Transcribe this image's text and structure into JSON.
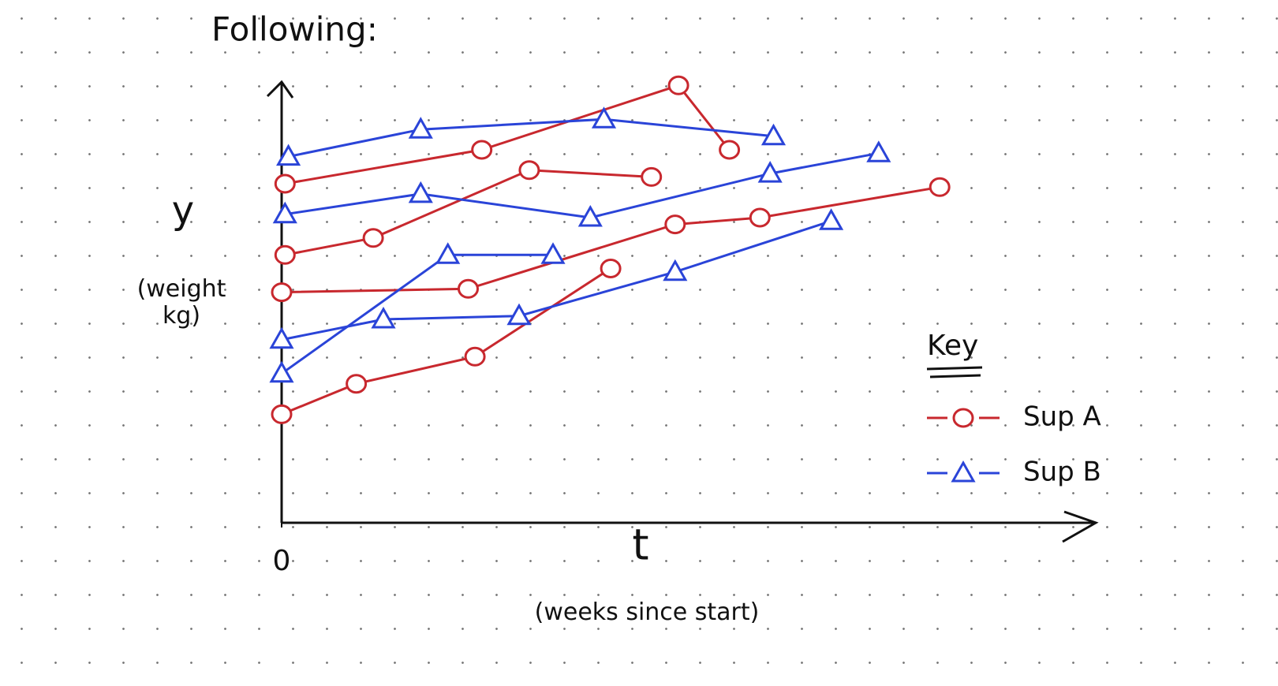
{
  "chart_data": {
    "type": "line",
    "title": "Following:",
    "xlabel": "t",
    "xlabel_note": "(weeks since start)",
    "ylabel": "y",
    "ylabel_note": "(weight kg)",
    "legend_title": "Key",
    "legend": "right",
    "xlim": [
      0,
      24
    ],
    "ylim": [
      0,
      13
    ],
    "xticks": [
      0
    ],
    "series": [
      {
        "name": "Sup A",
        "color": "#c8282e",
        "marker": "circle",
        "x": [
          0,
          2.2,
          5.7,
          9.7
        ],
        "values": [
          3.2,
          4.1,
          4.9,
          7.5
        ]
      },
      {
        "name": "Sup A",
        "color": "#c8282e",
        "marker": "circle",
        "x": [
          0.1,
          2.7,
          7.3,
          10.9
        ],
        "values": [
          7.9,
          8.4,
          10.4,
          10.2
        ]
      },
      {
        "name": "Sup A",
        "color": "#c8282e",
        "marker": "circle",
        "x": [
          0,
          5.5,
          11.6,
          14.1,
          19.4
        ],
        "values": [
          6.8,
          6.9,
          8.8,
          9.0,
          9.9
        ]
      },
      {
        "name": "Sup A",
        "color": "#c8282e",
        "marker": "circle",
        "x": [
          0.1,
          5.9,
          11.7,
          13.2
        ],
        "values": [
          10.0,
          11.0,
          12.9,
          11.0
        ]
      },
      {
        "name": "Sup B",
        "color": "#2a44d8",
        "marker": "triangle",
        "x": [
          0.2,
          4.1,
          9.5,
          14.5
        ],
        "values": [
          10.8,
          11.6,
          11.9,
          11.4
        ]
      },
      {
        "name": "Sup B",
        "color": "#2a44d8",
        "marker": "triangle",
        "x": [
          0.1,
          4.1,
          9.1,
          14.4,
          17.6
        ],
        "values": [
          9.1,
          9.7,
          9.0,
          10.3,
          10.9
        ]
      },
      {
        "name": "Sup B",
        "color": "#2a44d8",
        "marker": "triangle",
        "x": [
          0,
          4.9,
          8.0
        ],
        "values": [
          4.4,
          7.9,
          7.9
        ]
      },
      {
        "name": "Sup B",
        "color": "#2a44d8",
        "marker": "triangle",
        "x": [
          0,
          3.0,
          7.0,
          11.6,
          16.2
        ],
        "values": [
          5.4,
          6.0,
          6.1,
          7.4,
          8.9
        ]
      }
    ]
  }
}
